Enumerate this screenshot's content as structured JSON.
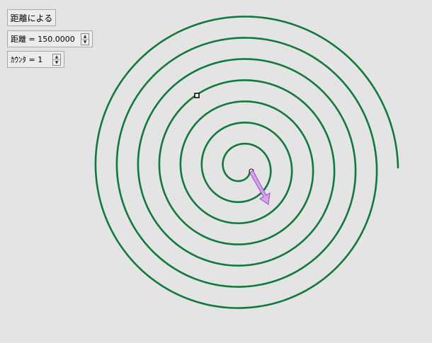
{
  "panel": {
    "mode_button": "距離による",
    "distance_field": {
      "label": "距離 = 150.0000"
    },
    "counter_field": {
      "label": "ｶｳﾝﾀ = 1"
    }
  },
  "icons": {
    "up": "▲",
    "down": "▼"
  },
  "colors": {
    "background": "#e4e4e4",
    "spiral": "#0f7a3a",
    "arrow_fill": "#d89ef2",
    "arrow_stroke": "#9a4fc0"
  }
}
